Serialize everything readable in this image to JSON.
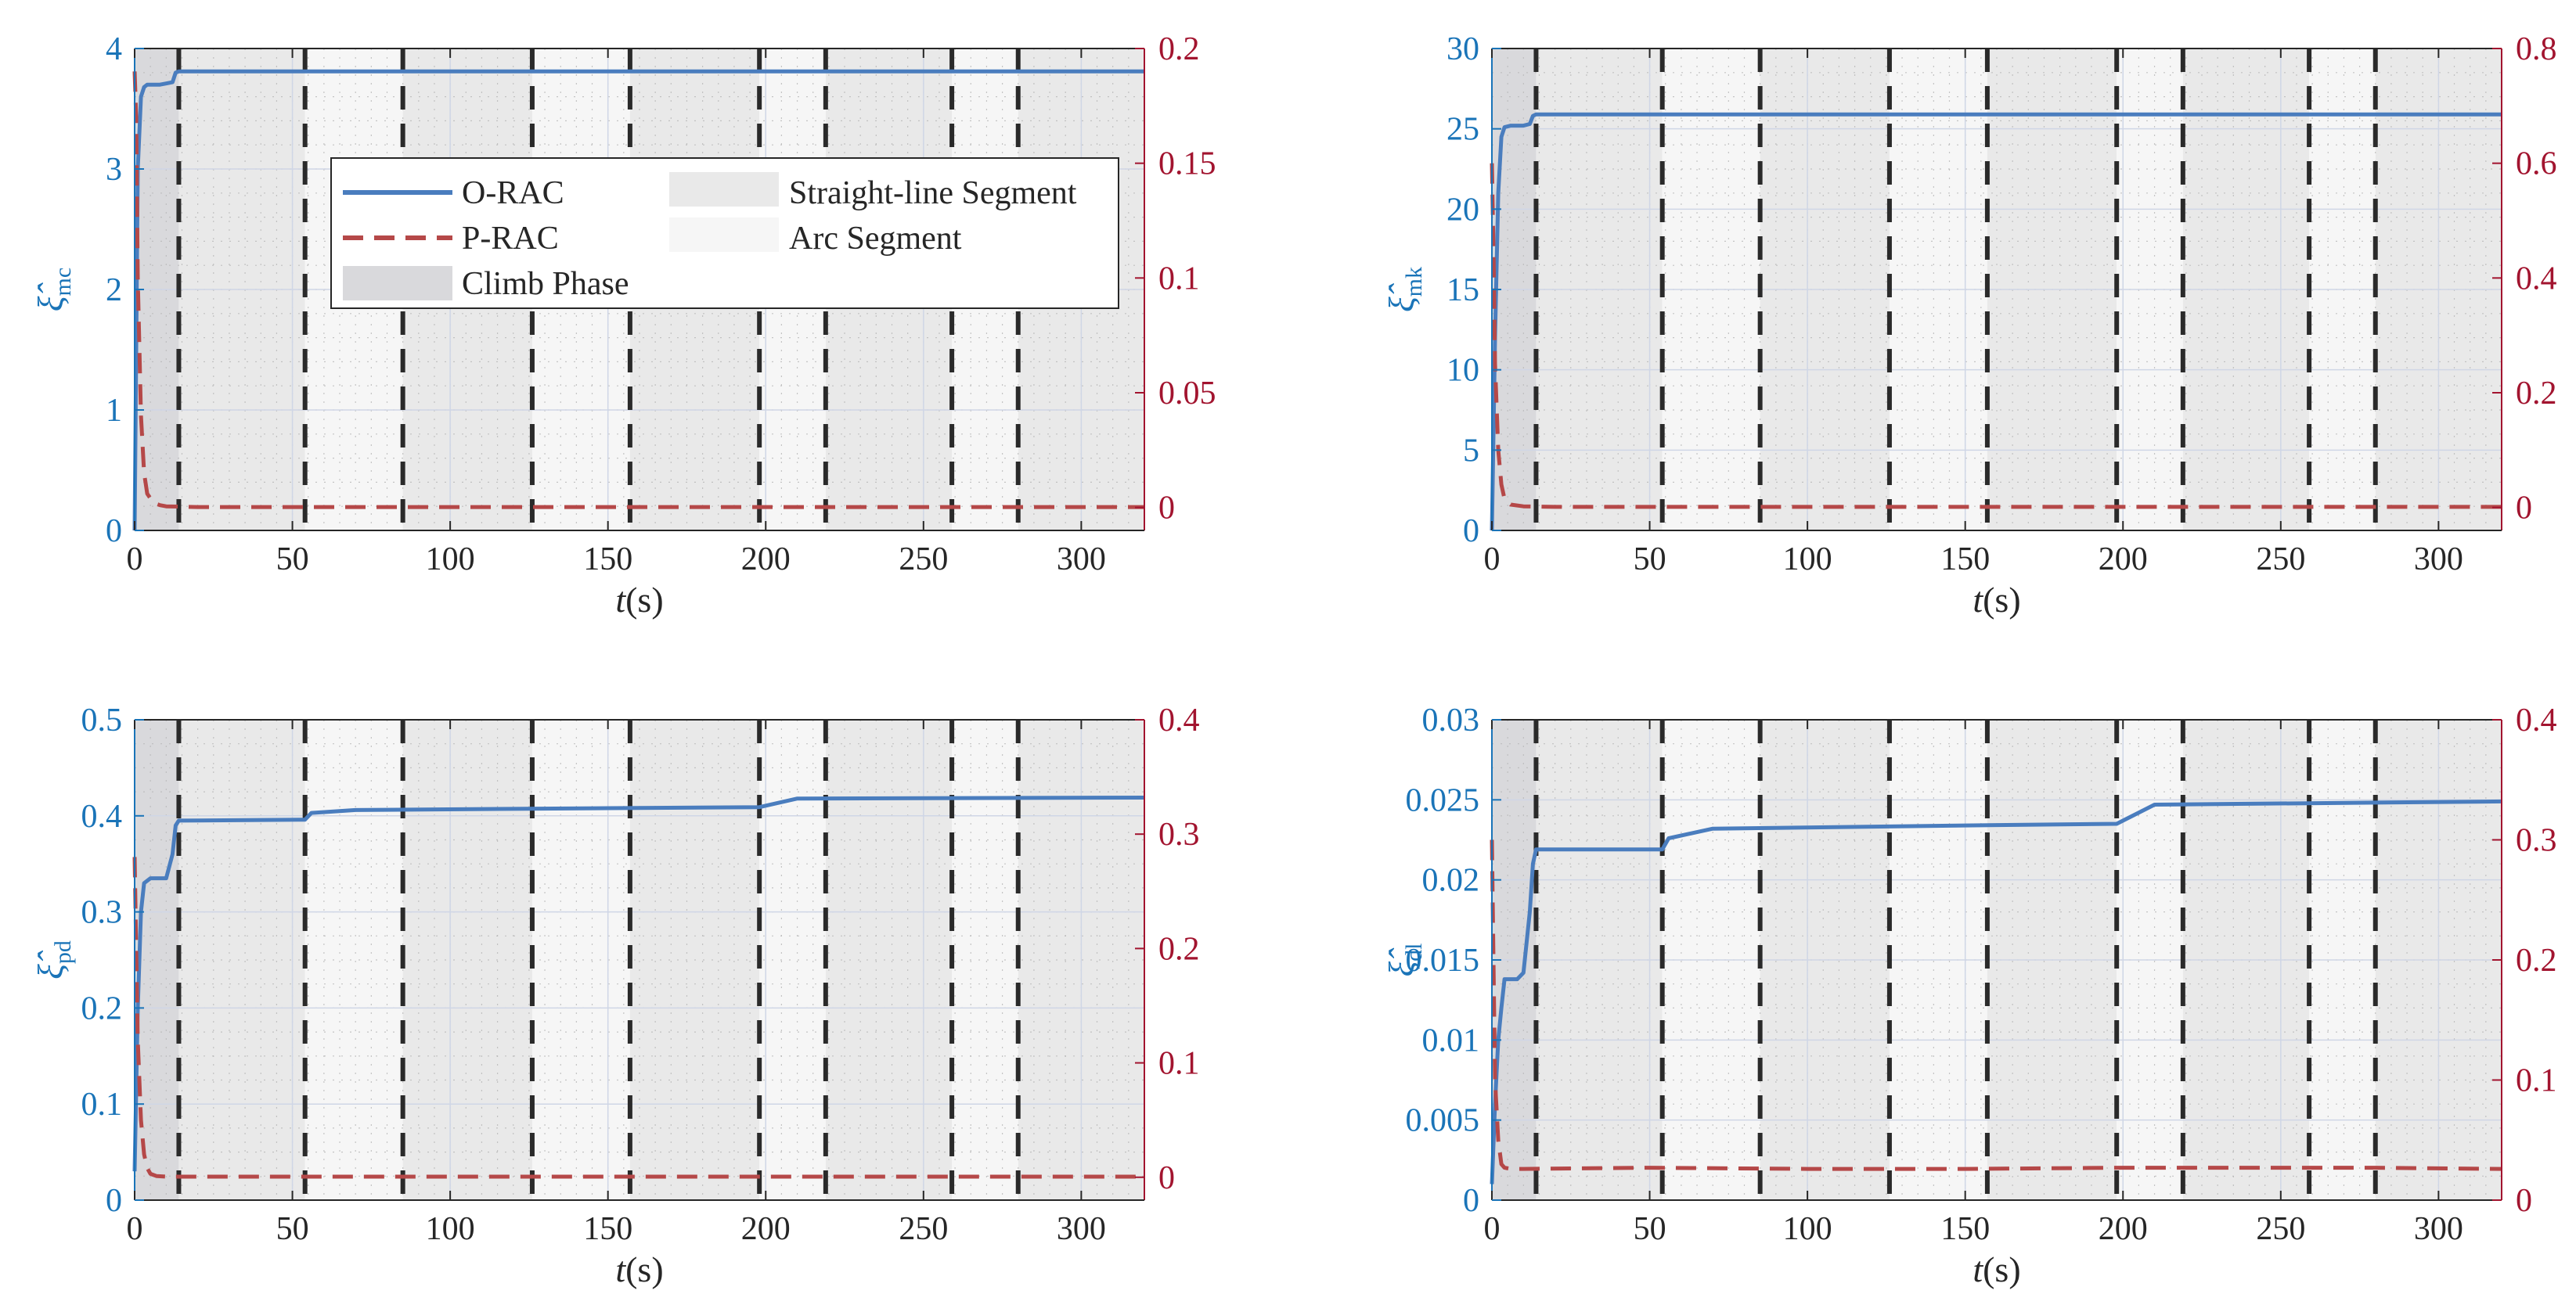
{
  "figure": {
    "legend_location": "inside-top of first panel"
  },
  "colors": {
    "o_rac": "#4a7dbe",
    "p_rac": "#b54848",
    "left_axis": "#1a74b8",
    "right_axis": "#a2142f",
    "climb_phase": "#d9d9dc",
    "straight_segment": "#e9e9e9",
    "arc_segment": "#f6f6f6",
    "switch_line": "#2a2a2a"
  },
  "legend": {
    "o_rac": "O-RAC",
    "p_rac": "P-RAC",
    "climb": "Climb Phase",
    "straight": "Straight-line Segment",
    "arc": "Arc Segment"
  },
  "chart_data": [
    {
      "type": "line",
      "panel": "top-left",
      "xlabel": "t(s)",
      "ylabel_left": "ξ̂_mc",
      "ylabel_symbol": "ξ̂",
      "ylabel_sub": "mc",
      "xlim": [
        0,
        320
      ],
      "xticks": [
        0,
        50,
        100,
        150,
        200,
        250,
        300
      ],
      "ylim_left": [
        0,
        4
      ],
      "yticks_left": [
        "0",
        "1",
        "2",
        "3",
        "4"
      ],
      "ylim_right": [
        -0.01,
        0.2
      ],
      "yticks_right": [
        "0",
        "0.05",
        "0.1",
        "0.15",
        "0.2"
      ],
      "climb_phase": [
        0,
        14
      ],
      "switch_times": [
        14,
        54,
        85,
        126,
        157,
        198,
        219,
        259,
        280
      ],
      "series": [
        {
          "name": "O-RAC",
          "axis": "left",
          "x": [
            0,
            1,
            2,
            3,
            4,
            5,
            8,
            10,
            12,
            13,
            14,
            320
          ],
          "y": [
            0,
            3.0,
            3.6,
            3.68,
            3.7,
            3.7,
            3.7,
            3.71,
            3.72,
            3.8,
            3.81,
            3.81
          ]
        },
        {
          "name": "P-RAC",
          "axis": "right",
          "x": [
            0,
            0.5,
            1,
            2,
            3,
            4,
            6,
            8,
            10,
            20,
            320
          ],
          "y": [
            0.19,
            0.17,
            0.1,
            0.04,
            0.015,
            0.006,
            0.002,
            0.001,
            0.0005,
            0.0002,
            0.0002
          ]
        }
      ]
    },
    {
      "type": "line",
      "panel": "top-right",
      "xlabel": "t(s)",
      "ylabel_left": "ξ̂_mk",
      "ylabel_symbol": "ξ̂",
      "ylabel_sub": "mk",
      "xlim": [
        0,
        320
      ],
      "xticks": [
        0,
        50,
        100,
        150,
        200,
        250,
        300
      ],
      "ylim_left": [
        0,
        30
      ],
      "yticks_left": [
        "0",
        "5",
        "10",
        "15",
        "20",
        "25",
        "30"
      ],
      "ylim_right": [
        -0.04,
        0.8
      ],
      "yticks_right": [
        "0",
        "0.2",
        "0.4",
        "0.6",
        "0.8"
      ],
      "climb_phase": [
        0,
        14
      ],
      "switch_times": [
        14,
        54,
        85,
        126,
        157,
        198,
        219,
        259,
        280
      ],
      "series": [
        {
          "name": "O-RAC",
          "axis": "left",
          "x": [
            0,
            1,
            2,
            3,
            4,
            6,
            10,
            12,
            13,
            14,
            320
          ],
          "y": [
            0,
            12,
            21,
            24.5,
            25.1,
            25.2,
            25.2,
            25.3,
            25.8,
            25.9,
            25.9
          ]
        },
        {
          "name": "P-RAC",
          "axis": "right",
          "x": [
            0,
            0.5,
            1,
            2,
            3,
            4,
            6,
            10,
            20,
            320
          ],
          "y": [
            0.6,
            0.45,
            0.25,
            0.1,
            0.04,
            0.015,
            0.005,
            0.002,
            0.001,
            0.001
          ]
        }
      ]
    },
    {
      "type": "line",
      "panel": "bottom-left",
      "xlabel": "t(s)",
      "ylabel_left": "ξ̂_pd",
      "ylabel_symbol": "ξ̂",
      "ylabel_sub": "pd",
      "xlim": [
        0,
        320
      ],
      "xticks": [
        0,
        50,
        100,
        150,
        200,
        250,
        300
      ],
      "ylim_left": [
        0,
        0.5
      ],
      "yticks_left": [
        "0",
        "0.1",
        "0.2",
        "0.3",
        "0.4",
        "0.5"
      ],
      "ylim_right": [
        -0.02,
        0.4
      ],
      "yticks_right": [
        "0",
        "0.1",
        "0.2",
        "0.3",
        "0.4"
      ],
      "climb_phase": [
        0,
        14
      ],
      "switch_times": [
        14,
        54,
        85,
        126,
        157,
        198,
        219,
        259,
        280
      ],
      "series": [
        {
          "name": "O-RAC",
          "axis": "left",
          "x": [
            0,
            1,
            2,
            3,
            5,
            7,
            10,
            12,
            13,
            14,
            54,
            56,
            70,
            150,
            198,
            210,
            320
          ],
          "y": [
            0.03,
            0.2,
            0.3,
            0.33,
            0.335,
            0.335,
            0.335,
            0.36,
            0.39,
            0.395,
            0.396,
            0.403,
            0.406,
            0.408,
            0.409,
            0.418,
            0.419
          ]
        },
        {
          "name": "P-RAC",
          "axis": "right",
          "x": [
            0,
            0.5,
            1,
            2,
            3,
            4,
            5,
            7,
            10,
            320
          ],
          "y": [
            0.28,
            0.2,
            0.12,
            0.05,
            0.02,
            0.008,
            0.003,
            0.001,
            0.0005,
            0.0005
          ]
        }
      ]
    },
    {
      "type": "line",
      "panel": "bottom-right",
      "xlabel": "t(s)",
      "ylabel_left": "ξ̂_dl",
      "ylabel_symbol": "ξ̂",
      "ylabel_sub": "dl",
      "xlim": [
        0,
        320
      ],
      "xticks": [
        0,
        50,
        100,
        150,
        200,
        250,
        300
      ],
      "ylim_left": [
        0,
        0.03
      ],
      "yticks_left": [
        "0",
        "0.005",
        "0.01",
        "0.015",
        "0.02",
        "0.025",
        "0.03"
      ],
      "ylim_right": [
        0,
        0.4
      ],
      "yticks_right": [
        "0",
        "0.1",
        "0.2",
        "0.3",
        "0.4"
      ],
      "climb_phase": [
        0,
        14
      ],
      "switch_times": [
        14,
        54,
        85,
        126,
        157,
        198,
        219,
        259,
        280
      ],
      "series": [
        {
          "name": "O-RAC",
          "axis": "left",
          "x": [
            0,
            1,
            2,
            3,
            4,
            6,
            8,
            10,
            12,
            13,
            14,
            54,
            56,
            70,
            150,
            198,
            210,
            320
          ],
          "y": [
            0.001,
            0.006,
            0.01,
            0.012,
            0.0138,
            0.0138,
            0.0138,
            0.0142,
            0.018,
            0.021,
            0.0219,
            0.0219,
            0.0226,
            0.0232,
            0.0234,
            0.0235,
            0.0247,
            0.0249
          ]
        },
        {
          "name": "P-RAC",
          "axis": "right",
          "x": [
            0,
            0.5,
            1,
            2,
            3,
            4,
            6,
            10,
            50,
            100,
            150,
            200,
            250,
            280,
            320
          ],
          "y": [
            0.3,
            0.2,
            0.1,
            0.05,
            0.03,
            0.027,
            0.026,
            0.026,
            0.027,
            0.026,
            0.026,
            0.027,
            0.027,
            0.027,
            0.026
          ]
        }
      ]
    }
  ]
}
